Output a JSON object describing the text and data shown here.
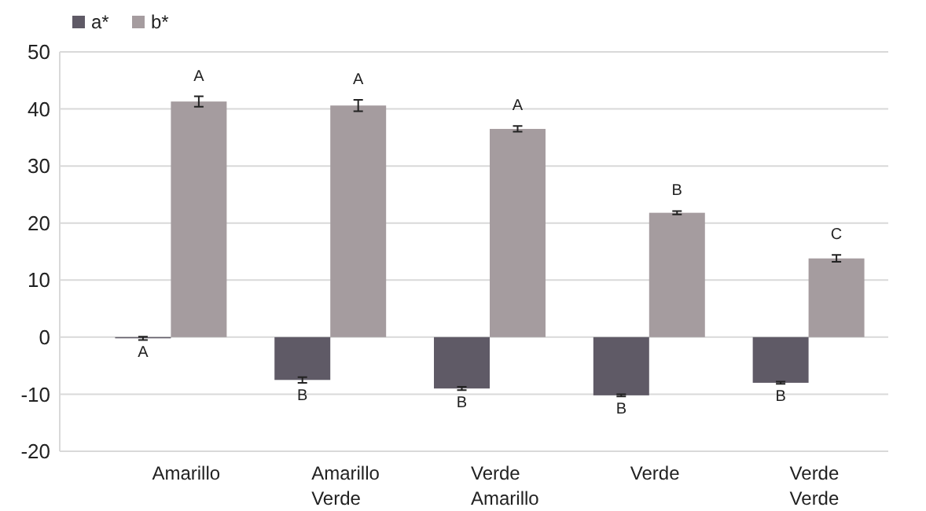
{
  "chart_data": {
    "type": "bar",
    "categories": [
      "Amarillo",
      "Amarillo Verde",
      "Verde Amarillo",
      "Verde",
      "Verde Verde"
    ],
    "series": [
      {
        "name": "a*",
        "color": "#5f5a66",
        "values": [
          -0.2,
          -7.5,
          -9,
          -10.2,
          -8
        ],
        "errors": [
          0.3,
          0.5,
          0.3,
          0.2,
          0.2
        ],
        "value_labels": [
          "A",
          "B",
          "B",
          "B",
          "B"
        ]
      },
      {
        "name": "b*",
        "color": "#a59c9f",
        "values": [
          41.3,
          40.6,
          36.5,
          21.8,
          13.8
        ],
        "errors": [
          0.9,
          1.0,
          0.5,
          0.3,
          0.6
        ],
        "value_labels": [
          "A",
          "A",
          "A",
          "B",
          "C"
        ]
      }
    ],
    "ylim": [
      -20,
      50
    ],
    "yticks": [
      -20,
      -10,
      0,
      10,
      20,
      30,
      40,
      50
    ],
    "grid": "y",
    "legend": "top left"
  }
}
